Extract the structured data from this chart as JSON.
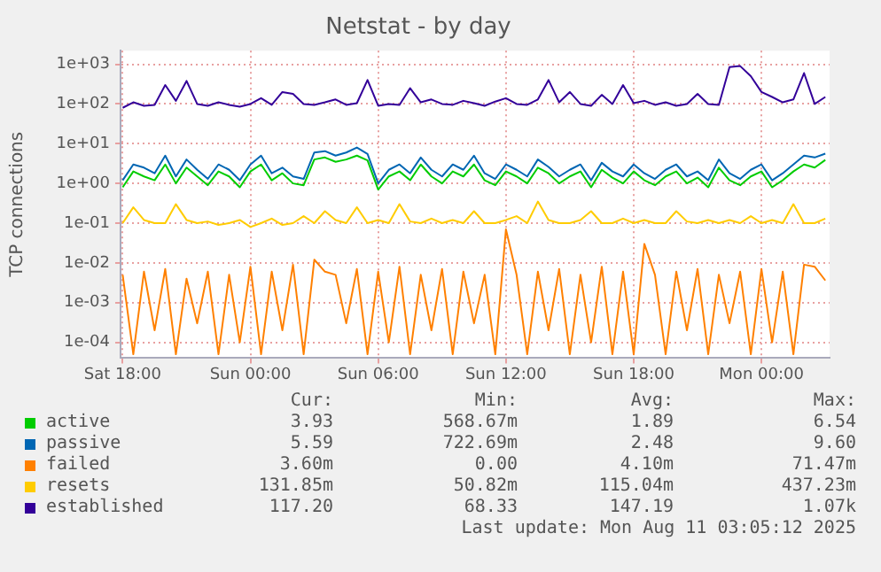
{
  "chart_data": {
    "type": "line",
    "title": "Netstat - by day",
    "ylabel": "TCP connections",
    "log": "y",
    "grid": true,
    "legend": "bottom",
    "marker": "none",
    "line_style": "solid",
    "xlim": [
      "2025-08-09T17:54",
      "2025-08-11T03:12"
    ],
    "xticks": [
      {
        "value": "2025-08-09T18:00",
        "label": "Sat 18:00"
      },
      {
        "value": "2025-08-10T00:00",
        "label": "Sun 00:00"
      },
      {
        "value": "2025-08-10T06:00",
        "label": "Sun 06:00"
      },
      {
        "value": "2025-08-10T12:00",
        "label": "Sun 12:00"
      },
      {
        "value": "2025-08-10T18:00",
        "label": "Sun 18:00"
      },
      {
        "value": "2025-08-11T00:00",
        "label": "Mon 00:00"
      }
    ],
    "ylim": [
      4e-05,
      2200
    ],
    "yticks": [
      {
        "value": 0.0001,
        "label": "1e-04"
      },
      {
        "value": 0.001,
        "label": "1e-03"
      },
      {
        "value": 0.01,
        "label": "1e-02"
      },
      {
        "value": 0.1,
        "label": "1e-01"
      },
      {
        "value": 1,
        "label": "1e+00"
      },
      {
        "value": 10,
        "label": "1e+01"
      },
      {
        "value": 100,
        "label": "1e+02"
      },
      {
        "value": 1000,
        "label": "1e+03"
      }
    ],
    "x": [
      "2025-08-09T18:00",
      "2025-08-09T18:30",
      "2025-08-09T19:00",
      "2025-08-09T19:30",
      "2025-08-09T20:00",
      "2025-08-09T20:30",
      "2025-08-09T21:00",
      "2025-08-09T21:30",
      "2025-08-09T22:00",
      "2025-08-09T22:30",
      "2025-08-09T23:00",
      "2025-08-09T23:30",
      "2025-08-10T00:00",
      "2025-08-10T00:30",
      "2025-08-10T01:00",
      "2025-08-10T01:30",
      "2025-08-10T02:00",
      "2025-08-10T02:30",
      "2025-08-10T03:00",
      "2025-08-10T03:30",
      "2025-08-10T04:00",
      "2025-08-10T04:30",
      "2025-08-10T05:00",
      "2025-08-10T05:30",
      "2025-08-10T06:00",
      "2025-08-10T06:30",
      "2025-08-10T07:00",
      "2025-08-10T07:30",
      "2025-08-10T08:00",
      "2025-08-10T08:30",
      "2025-08-10T09:00",
      "2025-08-10T09:30",
      "2025-08-10T10:00",
      "2025-08-10T10:30",
      "2025-08-10T11:00",
      "2025-08-10T11:30",
      "2025-08-10T12:00",
      "2025-08-10T12:30",
      "2025-08-10T13:00",
      "2025-08-10T13:30",
      "2025-08-10T14:00",
      "2025-08-10T14:30",
      "2025-08-10T15:00",
      "2025-08-10T15:30",
      "2025-08-10T16:00",
      "2025-08-10T16:30",
      "2025-08-10T17:00",
      "2025-08-10T17:30",
      "2025-08-10T18:00",
      "2025-08-10T18:30",
      "2025-08-10T19:00",
      "2025-08-10T19:30",
      "2025-08-10T20:00",
      "2025-08-10T20:30",
      "2025-08-10T21:00",
      "2025-08-10T21:30",
      "2025-08-10T22:00",
      "2025-08-10T22:30",
      "2025-08-10T23:00",
      "2025-08-10T23:30",
      "2025-08-11T00:00",
      "2025-08-11T00:30",
      "2025-08-11T01:00",
      "2025-08-11T01:30",
      "2025-08-11T02:00",
      "2025-08-11T02:30",
      "2025-08-11T03:00"
    ],
    "series": [
      {
        "name": "active",
        "color": "#00cc00",
        "values": [
          0.8,
          2,
          1.5,
          1.2,
          3,
          1,
          2.5,
          1.5,
          0.9,
          2,
          1.5,
          0.8,
          2,
          3,
          1.2,
          1.8,
          1,
          0.9,
          4,
          4.5,
          3.5,
          4,
          5,
          3.8,
          0.7,
          1.5,
          2,
          1.2,
          3,
          1.5,
          1,
          2,
          1.5,
          3,
          1.2,
          0.9,
          2,
          1.5,
          1,
          2.5,
          1.8,
          1,
          1.5,
          2,
          0.8,
          2.2,
          1.4,
          1,
          2,
          1.2,
          0.9,
          1.5,
          2,
          1,
          1.4,
          0.8,
          2.5,
          1.2,
          0.9,
          1.5,
          2,
          0.8,
          1.2,
          2,
          3,
          2.5,
          3.9
        ]
      },
      {
        "name": "passive",
        "color": "#0066b3",
        "values": [
          1.2,
          3,
          2.5,
          1.8,
          5,
          1.5,
          4,
          2.2,
          1.3,
          3,
          2.2,
          1.2,
          3,
          5,
          1.8,
          2.5,
          1.5,
          1.3,
          6,
          6.5,
          5,
          6,
          8,
          5.5,
          1,
          2.2,
          3,
          1.8,
          4.5,
          2.2,
          1.5,
          3,
          2.2,
          5,
          1.8,
          1.3,
          3,
          2.2,
          1.5,
          4,
          2.6,
          1.5,
          2.2,
          3,
          1.2,
          3.3,
          2,
          1.5,
          3,
          1.8,
          1.3,
          2.2,
          3,
          1.5,
          2,
          1.2,
          4,
          1.8,
          1.3,
          2.2,
          3,
          1.2,
          1.8,
          3,
          5,
          4.5,
          5.6
        ]
      },
      {
        "name": "failed",
        "color": "#ff8000",
        "values": [
          0.005,
          5e-05,
          0.006,
          0.0002,
          0.007,
          5e-05,
          0.004,
          0.0003,
          0.006,
          5e-05,
          0.005,
          0.0001,
          0.008,
          5e-05,
          0.006,
          0.0002,
          0.009,
          5e-05,
          0.012,
          0.006,
          0.005,
          0.0003,
          0.007,
          5e-05,
          0.006,
          0.0001,
          0.008,
          5e-05,
          0.005,
          0.0002,
          0.007,
          5e-05,
          0.006,
          0.0003,
          0.005,
          5e-05,
          0.07,
          0.005,
          5e-05,
          0.006,
          0.0002,
          0.007,
          5e-05,
          0.005,
          0.0001,
          0.008,
          5e-05,
          0.006,
          5e-05,
          0.03,
          0.005,
          5e-05,
          0.006,
          0.0002,
          0.007,
          5e-05,
          0.005,
          0.0003,
          0.006,
          5e-05,
          0.007,
          0.0001,
          0.006,
          5e-05,
          0.009,
          0.008,
          0.0036
        ]
      },
      {
        "name": "resets",
        "color": "#ffcc00",
        "values": [
          0.1,
          0.25,
          0.12,
          0.1,
          0.1,
          0.3,
          0.12,
          0.1,
          0.11,
          0.09,
          0.1,
          0.12,
          0.08,
          0.1,
          0.13,
          0.09,
          0.1,
          0.15,
          0.1,
          0.2,
          0.12,
          0.1,
          0.25,
          0.1,
          0.12,
          0.1,
          0.3,
          0.11,
          0.1,
          0.13,
          0.1,
          0.12,
          0.1,
          0.2,
          0.1,
          0.1,
          0.12,
          0.15,
          0.1,
          0.35,
          0.12,
          0.1,
          0.1,
          0.12,
          0.2,
          0.1,
          0.1,
          0.13,
          0.1,
          0.12,
          0.1,
          0.1,
          0.2,
          0.11,
          0.1,
          0.12,
          0.1,
          0.12,
          0.1,
          0.15,
          0.1,
          0.12,
          0.1,
          0.3,
          0.1,
          0.1,
          0.13
        ]
      },
      {
        "name": "established",
        "color": "#330099",
        "values": [
          80,
          110,
          90,
          95,
          300,
          120,
          380,
          100,
          90,
          110,
          95,
          85,
          100,
          140,
          95,
          200,
          180,
          100,
          95,
          110,
          130,
          95,
          105,
          400,
          90,
          100,
          95,
          250,
          110,
          130,
          100,
          95,
          120,
          105,
          90,
          115,
          140,
          100,
          95,
          130,
          400,
          110,
          200,
          100,
          90,
          170,
          100,
          300,
          105,
          120,
          95,
          110,
          90,
          100,
          180,
          100,
          95,
          850,
          900,
          500,
          200,
          150,
          110,
          130,
          600,
          100,
          150
        ]
      }
    ],
    "annotations": [
      "Cur:",
      "Min:",
      "Avg:",
      "Max:",
      "3.93",
      "568.67m",
      "1.89",
      "6.54",
      "5.59",
      "722.69m",
      "2.48",
      "9.60",
      "3.60m",
      "0.00",
      "4.10m",
      "71.47m",
      "131.85m",
      "50.82m",
      "115.04m",
      "437.23m",
      "117.20",
      "68.33",
      "147.19",
      "1.07k",
      "Last update: Mon Aug 11 03:05:12 2025"
    ]
  }
}
